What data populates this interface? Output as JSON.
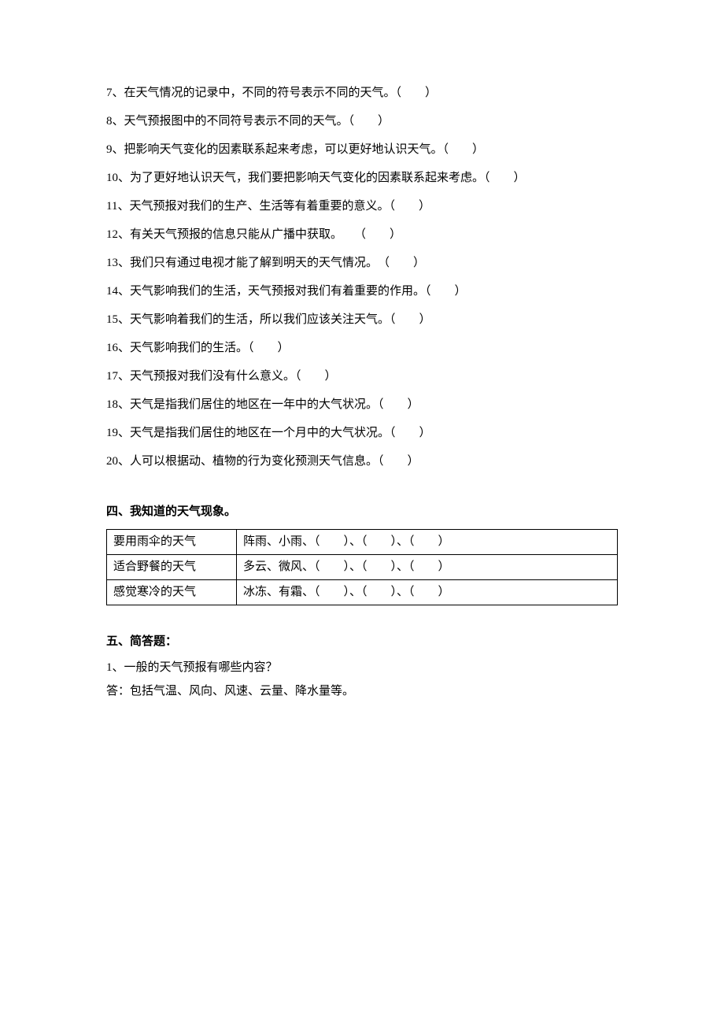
{
  "questions": [
    {
      "num": "7",
      "text": "在天气情况的记录中，不同的符号表示不同的天气。（　　）"
    },
    {
      "num": "8",
      "text": "天气预报图中的不同符号表示不同的天气。（　　）"
    },
    {
      "num": "9",
      "text": "把影响天气变化的因素联系起来考虑，可以更好地认识天气。（　　）"
    },
    {
      "num": "10",
      "text": "为了更好地认识天气，我们要把影响天气变化的因素联系起来考虑。（　　）"
    },
    {
      "num": "11",
      "text": "天气预报对我们的生产、生活等有着重要的意义。（　　）"
    },
    {
      "num": "12",
      "text": "有关天气预报的信息只能从广播中获取。　　（　　）"
    },
    {
      "num": "13",
      "text": "我们只有通过电视才能了解到明天的天气情况。　（　　）"
    },
    {
      "num": "14",
      "text": "天气影响我们的生活，天气预报对我们有着重要的作用。（　　）"
    },
    {
      "num": "15",
      "text": "天气影响着我们的生活，所以我们应该关注天气。（　　）"
    },
    {
      "num": "16",
      "text": "天气影响我们的生活。（　　）"
    },
    {
      "num": "17",
      "text": "天气预报对我们没有什么意义。（　　）"
    },
    {
      "num": "18",
      "text": "天气是指我们居住的地区在一年中的大气状况。（　　）"
    },
    {
      "num": "19",
      "text": "天气是指我们居住的地区在一个月中的大气状况。（　　）"
    },
    {
      "num": "20",
      "text": "人可以根据动、植物的行为变化预测天气信息。（　　）"
    }
  ],
  "section4": {
    "title": "四、我知道的天气现象。",
    "rows": [
      {
        "label": "要用雨伞的天气",
        "content": "阵雨、小雨、（　　）、（　　）、（　　）"
      },
      {
        "label": "适合野餐的天气",
        "content": "多云、微风、（　　）、（　　）、（　　）"
      },
      {
        "label": "感觉寒冷的天气",
        "content": "冰冻、有霜、（　　）、（　　）、（　　）"
      }
    ]
  },
  "section5": {
    "title": "五、简答题：",
    "question": "1、一般的天气预报有哪些内容？",
    "answer": "答：包括气温、风向、风速、云量、降水量等。"
  }
}
